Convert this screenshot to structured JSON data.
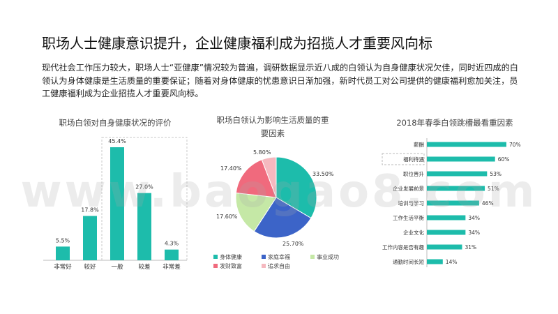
{
  "title": "职场人士健康意识提升，企业健康福利成为招揽人才重要风向标",
  "description": "现代社会工作压力较大，职场人士“亚健康”情况较为普遍，调研数据显示近八成的白领认为自身健康状况欠佳，同时近四成的白领认为身体健康是生活质量的重要保证；随着对身体健康的忧患意识日渐加强，新时代员工对公司提供的健康福利愈加关注，员工健康福利成为企业招揽人才重要风向标。",
  "watermark": "www.baogao8.com",
  "colors": {
    "teal": "#1dbcab",
    "blue": "#3c64c8",
    "green": "#c5e8a6",
    "pink": "#f06a7d",
    "lightpink": "#f5b8bf"
  },
  "chart_data": [
    {
      "type": "bar",
      "title": "职场白领对自身健康状况的评价",
      "categories": [
        "非常好",
        "较好",
        "一般",
        "较差",
        "非常差"
      ],
      "values": [
        5.5,
        17.8,
        45.4,
        27.0,
        4.3
      ],
      "value_labels": [
        "5.5%",
        "17.8%",
        "45.4%",
        "27.0%",
        "4.3%"
      ],
      "highlight": [
        "一般",
        "较差",
        "非常差"
      ]
    },
    {
      "type": "pie",
      "title": "职场白领认为影响生活质量的重要因素",
      "slices": [
        {
          "name": "身体健康",
          "value": 33.5,
          "label": "33.50%",
          "color": "#1dbcab"
        },
        {
          "name": "家庭幸福",
          "value": 25.7,
          "label": "25.70%",
          "color": "#3c64c8"
        },
        {
          "name": "事业成功",
          "value": 17.6,
          "label": "17.60%",
          "color": "#c5e8a6"
        },
        {
          "name": "发财致富",
          "value": 17.4,
          "label": "17.40%",
          "color": "#f06a7d"
        },
        {
          "name": "追求自由",
          "value": 5.8,
          "label": "5.80%",
          "color": "#f5b8bf"
        }
      ],
      "legend": "bottom"
    },
    {
      "type": "bar",
      "orientation": "horizontal",
      "title": "2018年春季白领跳槽最看重因素",
      "categories": [
        "薪酬",
        "福利待遇",
        "职位晋升",
        "企业发展前景",
        "培训与学习",
        "工作生活平衡",
        "企业文化",
        "工作内容是否有趣",
        "通勤时间长短"
      ],
      "values": [
        70,
        60,
        53,
        51,
        46,
        34,
        34,
        31,
        14
      ],
      "value_labels": [
        "70%",
        "60%",
        "53%",
        "51%",
        "46%",
        "34%",
        "34%",
        "31%",
        "14%"
      ],
      "highlight": [
        "福利待遇"
      ]
    }
  ]
}
